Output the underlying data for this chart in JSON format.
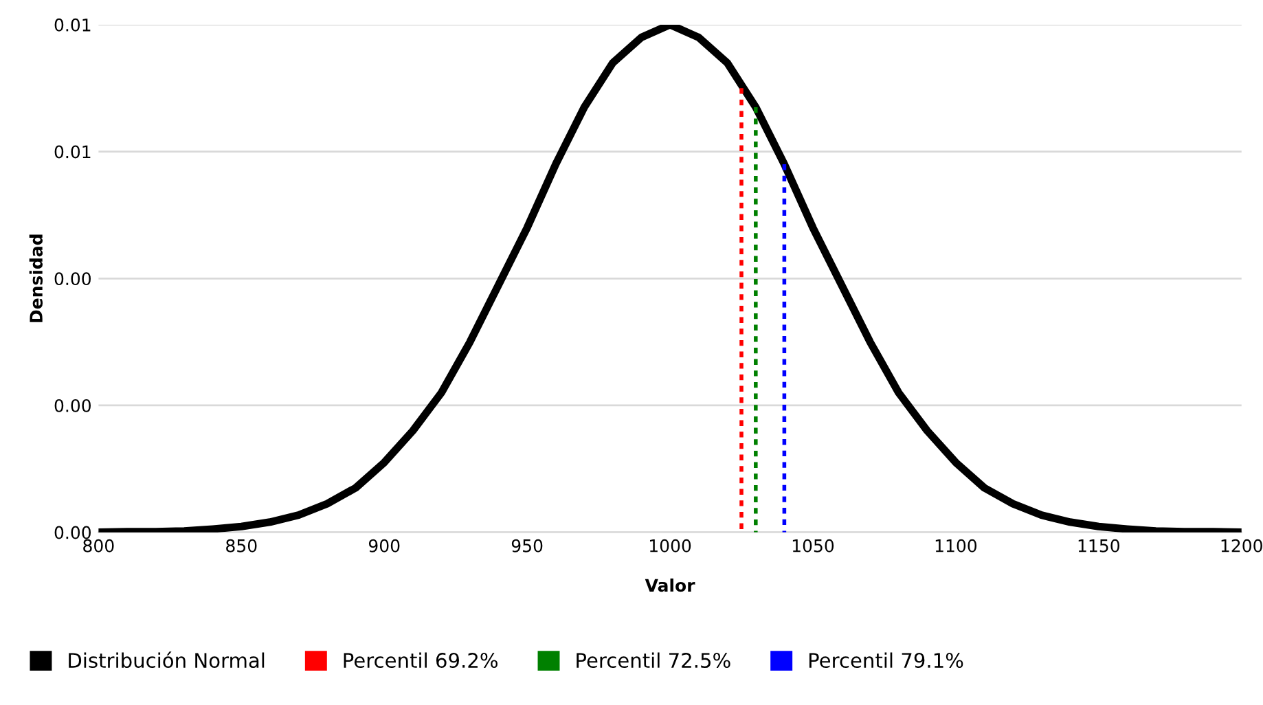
{
  "chart_data": {
    "type": "line",
    "xlabel": "Valor",
    "ylabel": "Densidad",
    "xlim": [
      800,
      1200
    ],
    "xticks": [
      800,
      850,
      900,
      950,
      1000,
      1050,
      1100,
      1150,
      1200
    ],
    "ylim": [
      0,
      0.008
    ],
    "yticks": [
      {
        "value": 0,
        "label": "0.00"
      },
      {
        "value": 0.002,
        "label": "0.00"
      },
      {
        "value": 0.004,
        "label": "0.00"
      },
      {
        "value": 0.006,
        "label": "0.01"
      },
      {
        "value": 0.008,
        "label": "0.01"
      }
    ],
    "grid": "y",
    "legend": "bottom left",
    "series": [
      {
        "name": "Distribución Normal",
        "color": "#000000",
        "line_style": "solid",
        "x": [
          800,
          810,
          820,
          830,
          840,
          850,
          860,
          870,
          880,
          890,
          900,
          910,
          920,
          930,
          940,
          950,
          960,
          970,
          980,
          990,
          1000,
          1010,
          1020,
          1030,
          1040,
          1050,
          1060,
          1070,
          1080,
          1090,
          1100,
          1110,
          1120,
          1130,
          1140,
          1150,
          1160,
          1170,
          1180,
          1190,
          1200
        ],
        "values": [
          0,
          1e-05,
          1e-05,
          2e-05,
          5e-05,
          9e-05,
          0.00016,
          0.00027,
          0.00045,
          0.0007,
          0.0011,
          0.0016,
          0.0022,
          0.003,
          0.0039,
          0.0048,
          0.0058,
          0.0067,
          0.0074,
          0.0078,
          0.008,
          0.0078,
          0.0074,
          0.0067,
          0.0058,
          0.0048,
          0.0039,
          0.003,
          0.0022,
          0.0016,
          0.0011,
          0.0007,
          0.00045,
          0.00027,
          0.00016,
          9e-05,
          5e-05,
          2e-05,
          1e-05,
          1e-05,
          0
        ]
      },
      {
        "name": "Percentil 69.2%",
        "color": "#ff0000",
        "line_style": "dotted",
        "x": [
          1025,
          1025
        ],
        "values": [
          0.007,
          0
        ]
      },
      {
        "name": "Percentil 72.5%",
        "color": "#008000",
        "line_style": "dotted",
        "x": [
          1030,
          1030
        ],
        "values": [
          0.0067,
          0
        ]
      },
      {
        "name": "Percentil 79.1%",
        "color": "#0000ff",
        "line_style": "dotted",
        "x": [
          1040,
          1040
        ],
        "values": [
          0.0058,
          0
        ]
      }
    ]
  }
}
